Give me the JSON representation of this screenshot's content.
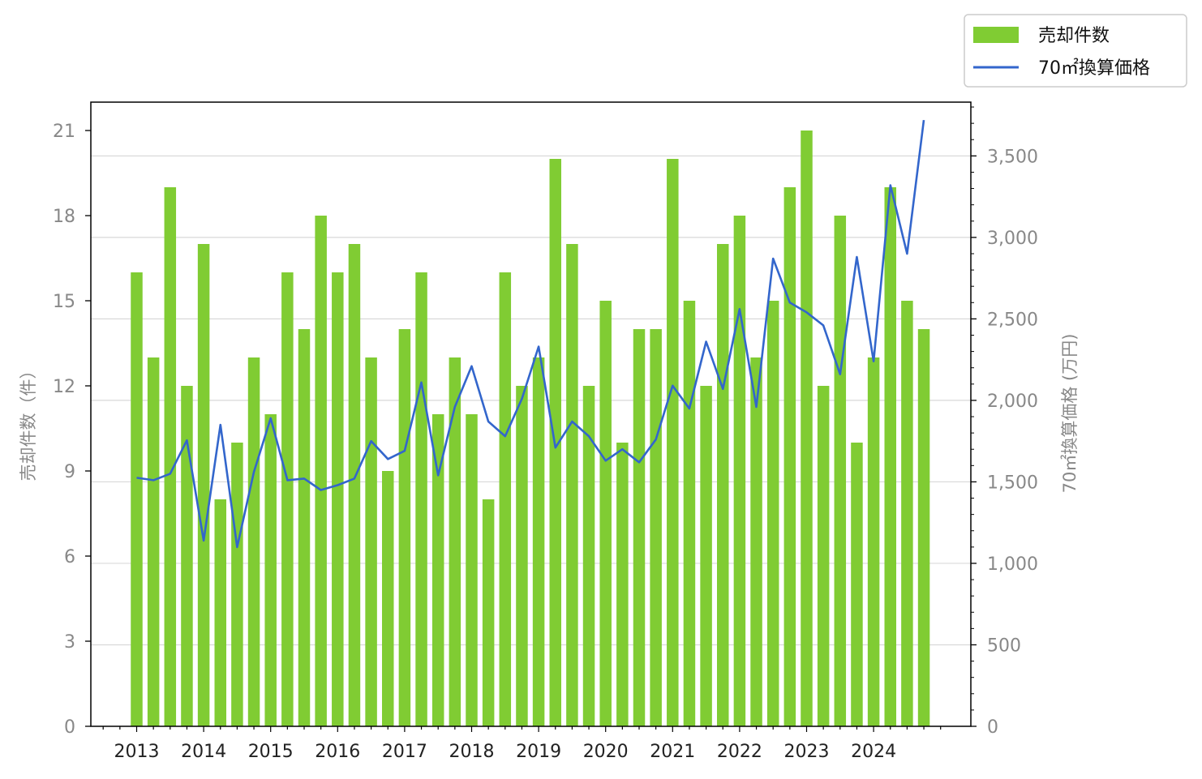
{
  "chart_data": {
    "type": "bar",
    "x": [
      "2013-Q1",
      "2013-Q2",
      "2013-Q3",
      "2013-Q4",
      "2014-Q1",
      "2014-Q2",
      "2014-Q3",
      "2014-Q4",
      "2015-Q1",
      "2015-Q2",
      "2015-Q3",
      "2015-Q4",
      "2016-Q1",
      "2016-Q2",
      "2016-Q3",
      "2016-Q4",
      "2017-Q1",
      "2017-Q2",
      "2017-Q3",
      "2017-Q4",
      "2018-Q1",
      "2018-Q2",
      "2018-Q3",
      "2018-Q4",
      "2019-Q1",
      "2019-Q2",
      "2019-Q3",
      "2019-Q4",
      "2020-Q1",
      "2020-Q2",
      "2020-Q3",
      "2020-Q4",
      "2021-Q1",
      "2021-Q2",
      "2021-Q3",
      "2021-Q4",
      "2022-Q1",
      "2022-Q2",
      "2022-Q3",
      "2022-Q4",
      "2023-Q1",
      "2023-Q2",
      "2023-Q3",
      "2023-Q4",
      "2024-Q1",
      "2024-Q2",
      "2024-Q3",
      "2024-Q4"
    ],
    "x_tick_labels": [
      "2013",
      "2014",
      "2015",
      "2016",
      "2017",
      "2018",
      "2019",
      "2020",
      "2021",
      "2022",
      "2023",
      "2024"
    ],
    "series": [
      {
        "name": "売却件数",
        "type": "bar",
        "axis": "left",
        "color": "#80cc33",
        "values": [
          16,
          13,
          19,
          12,
          17,
          8,
          10,
          13,
          11,
          16,
          14,
          18,
          16,
          17,
          13,
          9,
          14,
          16,
          11,
          13,
          11,
          8,
          16,
          12,
          13,
          20,
          17,
          12,
          15,
          10,
          14,
          14,
          20,
          15,
          12,
          17,
          18,
          13,
          15,
          19,
          21,
          12,
          18,
          10,
          13,
          19,
          15,
          14
        ]
      },
      {
        "name": "70㎡換算価格",
        "type": "line",
        "axis": "right",
        "color": "#3366cc",
        "values": [
          1525,
          1510,
          1550,
          1755,
          1140,
          1850,
          1100,
          1560,
          1890,
          1510,
          1520,
          1450,
          1480,
          1520,
          1750,
          1640,
          1690,
          2110,
          1540,
          1960,
          2210,
          1870,
          1780,
          2010,
          2330,
          1710,
          1870,
          1780,
          1630,
          1700,
          1620,
          1760,
          2090,
          1950,
          2360,
          2070,
          2560,
          1960,
          2870,
          2600,
          2540,
          2460,
          2160,
          2880,
          2240,
          3320,
          2900,
          3720
        ]
      }
    ],
    "ylabel": "売却件数（件）",
    "y2label": "70㎡換算価格 (万円)",
    "ylim": [
      0,
      22
    ],
    "y2lim": [
      0,
      3830
    ],
    "yticks": [
      "0",
      "3",
      "6",
      "9",
      "12",
      "15",
      "18",
      "21"
    ],
    "y2ticks": [
      "0",
      "500",
      "1,000",
      "1,500",
      "2,000",
      "2,500",
      "3,000",
      "3,500"
    ],
    "grid": "horizontal, right axis",
    "legend_position": "top-right, outside plot"
  }
}
